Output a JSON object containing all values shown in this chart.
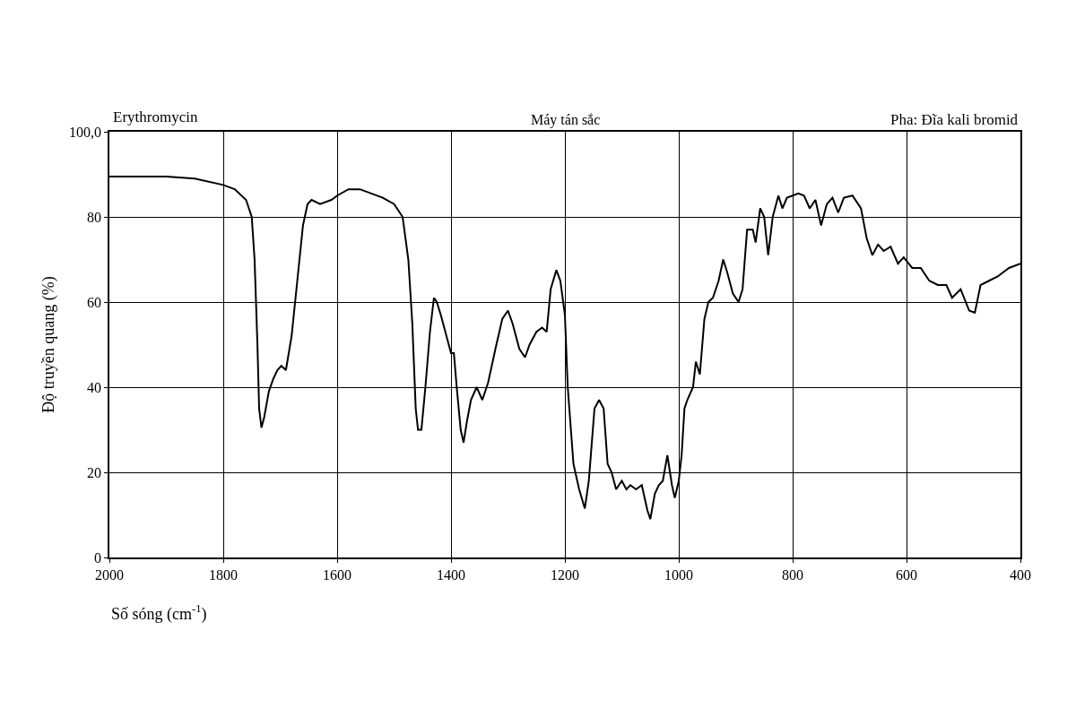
{
  "chart_data": {
    "type": "line",
    "title": "Erythromycin",
    "subtitle": "Máy tán sắc",
    "annotations": [
      "Pha: Đĩa kali bromid"
    ],
    "xlabel": "Số sóng (cm$^{-1}$)",
    "ylabel": "Độ truyền quang (%)",
    "xlim": [
      2000,
      400
    ],
    "xticks": [
      2000,
      1800,
      1600,
      1400,
      1200,
      1000,
      800,
      600,
      400
    ],
    "ylim": [
      0,
      100
    ],
    "yticks": [
      0,
      20,
      40,
      60,
      80,
      {
        "value": 100,
        "label": "100,0"
      }
    ],
    "grid": true,
    "marker": "none",
    "line_style": "solid",
    "series": [
      {
        "color": "#000000",
        "x": [
          2000,
          1950,
          1900,
          1850,
          1800,
          1780,
          1760,
          1750,
          1745,
          1740,
          1737,
          1733,
          1728,
          1720,
          1712,
          1705,
          1698,
          1690,
          1680,
          1670,
          1660,
          1652,
          1645,
          1630,
          1610,
          1600,
          1580,
          1560,
          1540,
          1520,
          1500,
          1485,
          1475,
          1468,
          1462,
          1458,
          1452,
          1445,
          1437,
          1430,
          1425,
          1418,
          1410,
          1400,
          1395,
          1390,
          1383,
          1378,
          1372,
          1365,
          1355,
          1345,
          1335,
          1322,
          1310,
          1300,
          1292,
          1280,
          1270,
          1262,
          1250,
          1240,
          1232,
          1225,
          1215,
          1208,
          1200,
          1195,
          1185,
          1175,
          1165,
          1158,
          1148,
          1140,
          1132,
          1125,
          1118,
          1110,
          1100,
          1092,
          1085,
          1075,
          1065,
          1055,
          1050,
          1042,
          1035,
          1028,
          1020,
          1012,
          1007,
          1000,
          995,
          990,
          985,
          975,
          970,
          963,
          955,
          948,
          940,
          930,
          922,
          915,
          905,
          895,
          888,
          880,
          870,
          865,
          857,
          850,
          843,
          835,
          825,
          818,
          810,
          800,
          790,
          780,
          770,
          760,
          750,
          740,
          730,
          720,
          710,
          695,
          680,
          670,
          660,
          650,
          640,
          628,
          615,
          605,
          590,
          575,
          560,
          545,
          530,
          520,
          505,
          490,
          480,
          470,
          455,
          440,
          420,
          400
        ],
        "values": [
          89.5,
          89.5,
          89.5,
          89,
          87.5,
          86.5,
          84,
          80,
          70,
          50,
          35,
          30.5,
          33,
          39,
          42,
          44,
          45,
          44,
          52,
          65,
          78,
          83,
          84,
          83,
          84,
          85,
          86.5,
          86.5,
          85.5,
          84.5,
          83,
          80,
          70,
          55,
          35,
          30,
          30,
          40,
          53,
          61,
          60,
          57,
          53,
          48,
          48,
          40,
          30,
          27,
          32,
          37,
          40,
          37,
          41,
          49,
          56,
          58,
          55,
          49,
          47,
          50,
          53,
          54,
          53,
          63,
          67.5,
          65,
          57,
          40,
          22,
          16,
          11.5,
          18,
          35,
          37,
          35,
          22,
          20,
          16,
          18,
          16,
          17,
          16,
          17,
          11,
          9,
          15,
          17,
          18,
          24,
          17,
          14,
          18,
          24,
          35,
          37,
          40,
          46,
          43,
          56,
          60,
          61,
          65,
          70,
          67,
          62,
          60,
          63,
          77,
          77,
          74,
          82,
          80,
          71,
          80,
          85,
          82,
          84.5,
          85,
          85.5,
          85,
          82,
          84,
          78,
          83,
          84.5,
          81,
          84.5,
          85,
          82,
          75,
          71,
          73.5,
          72,
          73,
          69,
          70.5,
          68,
          68,
          65,
          64,
          64,
          61,
          63,
          58,
          57.5,
          64,
          65,
          66,
          68,
          69
        ]
      }
    ]
  }
}
